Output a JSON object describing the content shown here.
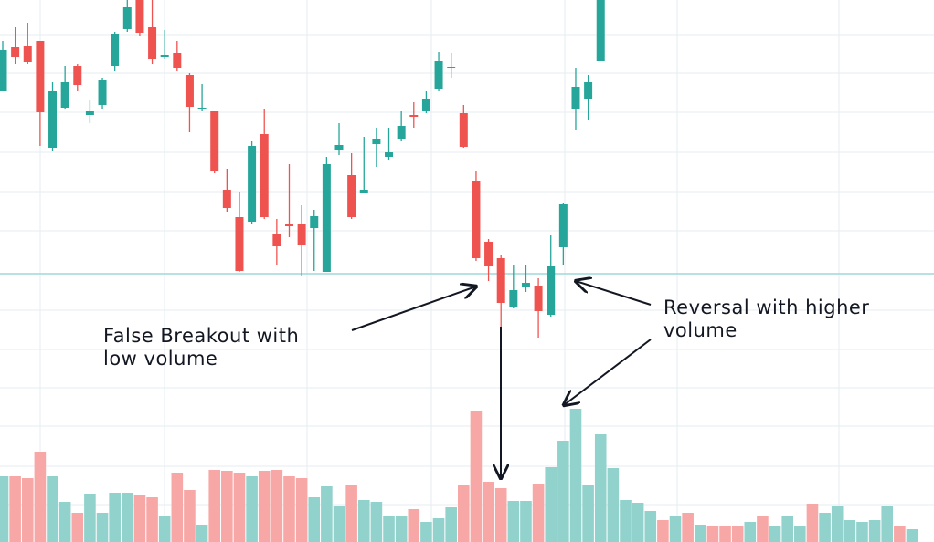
{
  "chart_data": {
    "type": "candlestick",
    "categories": [
      null,
      null,
      null,
      null,
      null,
      null,
      null,
      null,
      null,
      null,
      null,
      null,
      null,
      null,
      null,
      null,
      null,
      null,
      null,
      null,
      null,
      null,
      null,
      null,
      null,
      null,
      null,
      null,
      null,
      null,
      null,
      null,
      null,
      null,
      null,
      null,
      null,
      null,
      null,
      null,
      null,
      null,
      null,
      null,
      null,
      null,
      null,
      null,
      null,
      null,
      null,
      null,
      null,
      null,
      null,
      null,
      null,
      null,
      null,
      null,
      null,
      null,
      null,
      null,
      null,
      null,
      null,
      null,
      null,
      null,
      null,
      null,
      null,
      null
    ],
    "ylim": [
      200,
      600
    ],
    "grid": true,
    "up_color": "#26a69a",
    "down_color": "#ef5350",
    "support_level": 300,
    "open": [
      500,
      548,
      550,
      555,
      438,
      482,
      528,
      474,
      485,
      528,
      568,
      600,
      570,
      537,
      542,
      518,
      480,
      478,
      392,
      362,
      357,
      453,
      344,
      355,
      355,
      350,
      302,
      436,
      408,
      388,
      442,
      428,
      448,
      474,
      478,
      503,
      525,
      476,
      402,
      335,
      317,
      263,
      286,
      287,
      255,
      329,
      480,
      492,
      533,
      null,
      null,
      null,
      null,
      null,
      null,
      null,
      null,
      null,
      null,
      null,
      null,
      null,
      null,
      null,
      null,
      null,
      null,
      null,
      null,
      null,
      null,
      null,
      null,
      null
    ],
    "high": [
      555,
      570,
      575,
      555,
      510,
      528,
      530,
      490,
      515,
      565,
      600,
      600,
      600,
      567,
      555,
      520,
      508,
      478,
      415,
      390,
      445,
      480,
      360,
      420,
      375,
      370,
      428,
      465,
      432,
      450,
      460,
      460,
      478,
      488,
      500,
      543,
      542,
      485,
      413,
      338,
      320,
      310,
      310,
      295,
      342,
      378,
      525,
      518,
      600,
      null,
      null,
      null,
      null,
      null,
      null,
      null,
      null,
      null,
      null,
      null,
      null,
      null,
      null,
      null,
      null,
      null,
      null,
      null,
      null,
      null,
      null,
      null,
      null,
      null
    ],
    "low": [
      500,
      530,
      530,
      440,
      435,
      480,
      500,
      465,
      480,
      522,
      565,
      560,
      530,
      535,
      522,
      455,
      478,
      410,
      368,
      302,
      355,
      360,
      310,
      340,
      298,
      303,
      302,
      430,
      360,
      388,
      417,
      425,
      445,
      460,
      476,
      500,
      515,
      438,
      314,
      292,
      242,
      262,
      280,
      230,
      253,
      310,
      458,
      468,
      533,
      null,
      null,
      null,
      null,
      null,
      null,
      null,
      null,
      null,
      null,
      null,
      null,
      null,
      null,
      null,
      null,
      null,
      null,
      null,
      null,
      null,
      null,
      null,
      null,
      null
    ],
    "close": [
      545,
      537,
      532,
      477,
      500,
      510,
      507,
      478,
      512,
      563,
      592,
      564,
      535,
      540,
      525,
      483,
      482,
      413,
      372,
      303,
      440,
      362,
      330,
      352,
      332,
      363,
      420,
      441,
      362,
      392,
      448,
      433,
      462,
      472,
      492,
      533,
      527,
      439,
      317,
      308,
      268,
      282,
      290,
      259,
      308,
      376,
      505,
      510,
      600,
      null,
      null,
      null,
      null,
      null,
      null,
      null,
      null,
      null,
      null,
      null,
      null,
      null,
      null,
      null,
      null,
      null,
      null,
      null,
      null,
      null,
      null,
      null,
      null,
      null
    ],
    "volume": {
      "ylim": [
        0,
        150
      ],
      "values": [
        72,
        72,
        70,
        99,
        72,
        44,
        32,
        53,
        32,
        54,
        54,
        51,
        49,
        28,
        76,
        57,
        19,
        79,
        78,
        76,
        72,
        78,
        79,
        72,
        70,
        49,
        61,
        39,
        62,
        46,
        44,
        29,
        29,
        36,
        22,
        26,
        38,
        62,
        144,
        66,
        59,
        45,
        45,
        64,
        82,
        111,
        146,
        62,
        118,
        81,
        46,
        43,
        34,
        24,
        29,
        32,
        19,
        17,
        17,
        17,
        22,
        29,
        17,
        28,
        17,
        42,
        32,
        39,
        24,
        22,
        24,
        39,
        18,
        14
      ],
      "colors": [
        "#92d2cc",
        "#f7a8a6",
        "#f7a8a6",
        "#f7a8a6",
        "#92d2cc",
        "#92d2cc",
        "#f7a8a6",
        "#92d2cc",
        "#92d2cc",
        "#92d2cc",
        "#92d2cc",
        "#f7a8a6",
        "#f7a8a6",
        "#92d2cc",
        "#f7a8a6",
        "#f7a8a6",
        "#92d2cc",
        "#f7a8a6",
        "#f7a8a6",
        "#f7a8a6",
        "#92d2cc",
        "#f7a8a6",
        "#f7a8a6",
        "#f7a8a6",
        "#f7a8a6",
        "#92d2cc",
        "#92d2cc",
        "#92d2cc",
        "#f7a8a6",
        "#92d2cc",
        "#92d2cc",
        "#92d2cc",
        "#92d2cc",
        "#f7a8a6",
        "#92d2cc",
        "#92d2cc",
        "#92d2cc",
        "#f7a8a6",
        "#f7a8a6",
        "#f7a8a6",
        "#f7a8a6",
        "#92d2cc",
        "#92d2cc",
        "#f7a8a6",
        "#92d2cc",
        "#92d2cc",
        "#92d2cc",
        "#92d2cc",
        "#92d2cc",
        "#92d2cc",
        "#92d2cc",
        "#92d2cc",
        "#92d2cc",
        "#f7a8a6",
        "#92d2cc",
        "#f7a8a6",
        "#92d2cc",
        "#f7a8a6",
        "#f7a8a6",
        "#f7a8a6",
        "#92d2cc",
        "#f7a8a6",
        "#92d2cc",
        "#92d2cc",
        "#92d2cc",
        "#f7a8a6",
        "#92d2cc",
        "#92d2cc",
        "#92d2cc",
        "#92d2cc",
        "#92d2cc",
        "#92d2cc",
        "#f7a8a6",
        "#92d2cc"
      ]
    },
    "annotations": [
      {
        "lines": [
          "False Breakout with",
          "low volume"
        ]
      },
      {
        "lines": [
          "Reversal with higher",
          "volume"
        ]
      }
    ]
  }
}
